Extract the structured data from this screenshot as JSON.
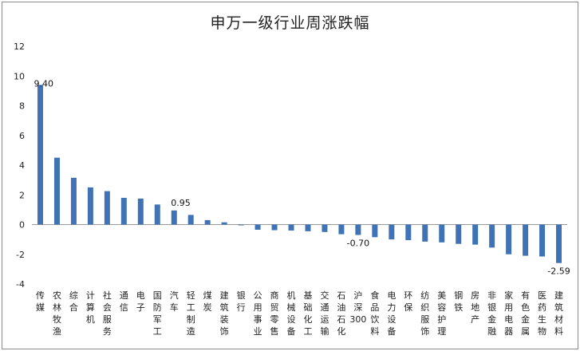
{
  "chart_data": {
    "type": "bar",
    "title": "申万一级行业周涨跌幅",
    "xlabel": "",
    "ylabel": "",
    "ylim": [
      -4,
      12
    ],
    "yticks": [
      -4,
      -2,
      0,
      2,
      4,
      6,
      8,
      10,
      12
    ],
    "grid": false,
    "legend": "none",
    "bar_color": "#3f73b6",
    "categories": [
      "传媒",
      "农林牧渔",
      "综合",
      "计算机",
      "社会服务",
      "通信",
      "电子",
      "国防军工",
      "汽车",
      "轻工制造",
      "煤炭",
      "建筑装饰",
      "银行",
      "公用事业",
      "商贸零售",
      "机械设备",
      "基础化工",
      "交通运输",
      "石油石化",
      "沪深300",
      "食品饮料",
      "电力设备",
      "环保",
      "纺织服饰",
      "美容护理",
      "钢铁",
      "房地产",
      "非银金融",
      "家用电器",
      "有色金属",
      "医药生物",
      "建筑材料"
    ],
    "values": [
      9.4,
      4.5,
      3.15,
      2.5,
      2.25,
      1.8,
      1.75,
      1.35,
      0.95,
      0.65,
      0.3,
      0.15,
      -0.05,
      -0.35,
      -0.38,
      -0.4,
      -0.45,
      -0.5,
      -0.65,
      -0.7,
      -0.85,
      -1.0,
      -1.05,
      -1.15,
      -1.2,
      -1.3,
      -1.35,
      -1.55,
      -2.0,
      -2.1,
      -2.15,
      -2.59
    ],
    "data_labels": [
      {
        "index": 0,
        "text": "9.40"
      },
      {
        "index": 8,
        "text": "0.95"
      },
      {
        "index": 19,
        "text": "-0.70"
      },
      {
        "index": 31,
        "text": "-2.59"
      }
    ]
  }
}
